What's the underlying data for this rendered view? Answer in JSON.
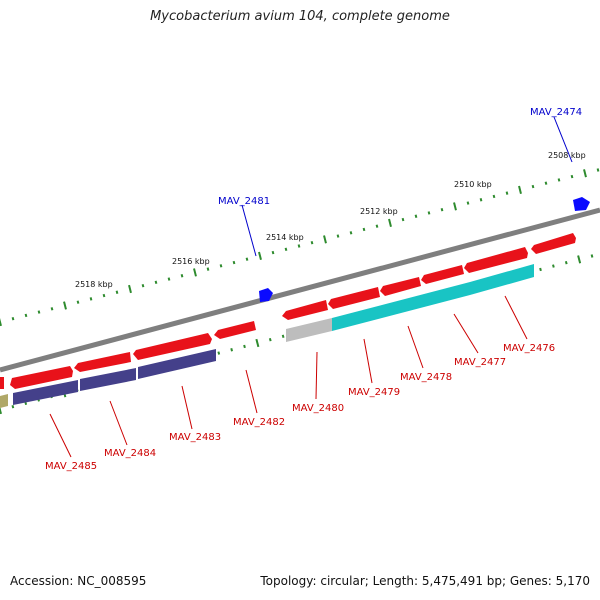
{
  "title": "Mycobacterium avium 104, complete genome",
  "footer": {
    "accession": "Accession: NC_008595",
    "stats": "Topology: circular; Length: 5,475,491 bp; Genes: 5,170"
  },
  "colors": {
    "backbone": "#7f7f7f",
    "tick": "#2e8b2e",
    "forward_gene": "#e8121a",
    "reverse_gene_blue": "#44408a",
    "reverse_gene_cyan": "#19c4c4",
    "reverse_gene_grey": "#bdbdbd",
    "reverse_gene_olive": "#b0a868",
    "marker": "#0a0aff",
    "forward_label": "#0000cc",
    "reverse_label": "#cc0000"
  },
  "scale": {
    "unit": "kbp",
    "labels": [
      "2508 kbp",
      "2510 kbp",
      "2512 kbp",
      "2514 kbp",
      "2516 kbp",
      "2518 kbp"
    ]
  },
  "forward_labels": [
    "MAV_2474",
    "MAV_2481"
  ],
  "reverse_labels": [
    "MAV_2476",
    "MAV_2477",
    "MAV_2478",
    "MAV_2479",
    "MAV_2480",
    "MAV_2482",
    "MAV_2483",
    "MAV_2484",
    "MAV_2485"
  ]
}
